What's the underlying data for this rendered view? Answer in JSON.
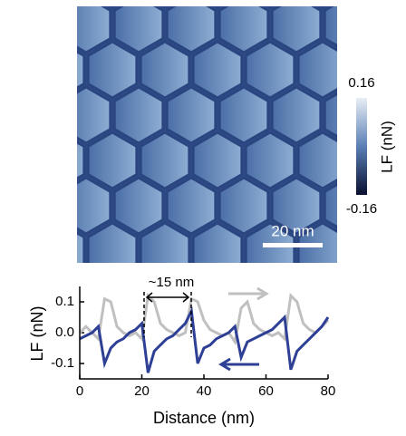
{
  "image": {
    "colorbar": {
      "max": 0.16,
      "min": -0.16,
      "label": "LF (nN)"
    },
    "scale_bar": "20 nm"
  },
  "chart_data": {
    "type": "line",
    "ylabel": "LF (nN)",
    "xlabel": "Distance (nm)",
    "annotation": "~15 nm",
    "x": [
      0,
      2,
      4,
      6,
      8,
      10,
      12,
      14,
      16,
      18,
      20,
      22,
      24,
      26,
      28,
      30,
      32,
      34,
      36,
      38,
      40,
      42,
      44,
      46,
      48,
      50,
      52,
      54,
      56,
      58,
      60,
      62,
      64,
      66,
      68,
      70,
      72,
      74,
      76,
      78,
      80
    ],
    "series": [
      {
        "color": "#c0c0c0",
        "values": [
          0.0,
          0.02,
          0.0,
          -0.02,
          0.11,
          0.1,
          0.02,
          0.0,
          -0.01,
          0.0,
          -0.02,
          0.12,
          0.1,
          0.03,
          0.01,
          0.0,
          -0.01,
          0.0,
          0.11,
          0.1,
          0.04,
          0.01,
          0.0,
          -0.01,
          0.0,
          -0.03,
          0.08,
          0.1,
          0.03,
          0.01,
          0.0,
          -0.01,
          0.0,
          -0.02,
          0.12,
          0.1,
          0.03,
          0.01,
          0.0,
          0.02,
          0.04
        ]
      },
      {
        "color": "#2e3f96",
        "values": [
          -0.02,
          -0.01,
          0.0,
          0.02,
          -0.1,
          -0.05,
          -0.03,
          -0.02,
          0.0,
          0.01,
          0.03,
          -0.13,
          -0.06,
          -0.04,
          -0.02,
          -0.01,
          0.01,
          0.03,
          0.07,
          -0.1,
          -0.05,
          -0.04,
          -0.02,
          -0.01,
          0.0,
          0.02,
          -0.08,
          -0.03,
          -0.02,
          -0.01,
          0.0,
          0.01,
          0.03,
          0.05,
          -0.12,
          -0.06,
          -0.04,
          -0.02,
          0.0,
          0.02,
          0.05
        ]
      }
    ],
    "xlim": [
      0,
      80
    ],
    "xticks": [
      0,
      20,
      40,
      60,
      80
    ],
    "ylim": [
      -0.15,
      0.15
    ],
    "yticks": [
      0.1,
      {
        "value": 0,
        "label": "0.0"
      },
      -0.1
    ]
  }
}
